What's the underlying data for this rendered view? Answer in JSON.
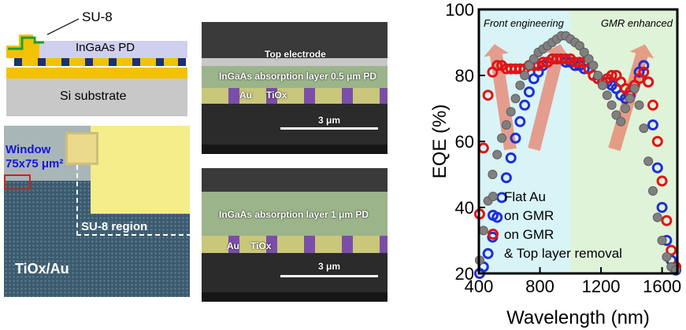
{
  "schematic": {
    "su8_label": "SU-8",
    "ingaas_label": "InGaAs PD",
    "substrate_label": "Si substrate"
  },
  "micrograph": {
    "window_label": "Window",
    "window_size": "75x75 μm²",
    "su8_region_label": "SU-8 region",
    "tiox_au_label": "TiOx/Au"
  },
  "sem_top": {
    "electrode_label": "Top electrode",
    "layer_label": "InGaAs absorption layer 0.5 μm PD",
    "au_label": "Au",
    "tiox_label": "TiOx",
    "scale_label": "3 μm"
  },
  "sem_bottom": {
    "layer_label": "InGaAs absorption layer 1 μm PD",
    "au_label": "Au",
    "tiox_label": "TiOx",
    "scale_label": "3 μm"
  },
  "chart_data": {
    "type": "scatter",
    "xlabel": "Wavelength (nm)",
    "ylabel": "EQE (%)",
    "xlim": [
      400,
      1700
    ],
    "ylim": [
      20,
      100
    ],
    "xticks": [
      400,
      800,
      1200,
      1600
    ],
    "yticks": [
      20,
      40,
      60,
      80,
      100
    ],
    "annotations": [
      "Front engineering",
      "GMR enhanced"
    ],
    "colors": {
      "flat": "#808080",
      "gmr": "#1f2fd6",
      "gmr_removal": "#e01515",
      "region_left": "#d8f4f7",
      "region_right": "#dff3d8",
      "arrow": "#e8806a"
    },
    "series": [
      {
        "name": "Flat Au",
        "x": [
          405,
          430,
          460,
          490,
          520,
          550,
          580,
          610,
          640,
          670,
          700,
          730,
          760,
          790,
          820,
          850,
          880,
          910,
          940,
          970,
          1000,
          1030,
          1060,
          1090,
          1120,
          1150,
          1180,
          1210,
          1240,
          1270,
          1300,
          1330,
          1360,
          1390,
          1420,
          1450,
          1480,
          1510,
          1540,
          1570,
          1600,
          1630,
          1660,
          1690
        ],
        "y": [
          24,
          33,
          42,
          50,
          56,
          61,
          65,
          69,
          73,
          77,
          80,
          83,
          85,
          87,
          88,
          89,
          90,
          91,
          92,
          92,
          91,
          90,
          89,
          87,
          85,
          83,
          80,
          77,
          74,
          71,
          68,
          66,
          70,
          73,
          76,
          71,
          64,
          54,
          45,
          37,
          30,
          25,
          22,
          21
        ]
      },
      {
        "name": "on GMR",
        "x": [
          405,
          430,
          460,
          490,
          520,
          550,
          580,
          610,
          640,
          670,
          700,
          730,
          760,
          790,
          820,
          850,
          880,
          910,
          940,
          970,
          1000,
          1030,
          1060,
          1090,
          1120,
          1150,
          1180,
          1210,
          1240,
          1270,
          1300,
          1330,
          1360,
          1390,
          1420,
          1450,
          1480,
          1510,
          1540,
          1570,
          1600,
          1630,
          1660,
          1690
        ],
        "y": [
          20,
          22,
          26,
          31,
          37,
          43,
          49,
          55,
          61,
          66,
          71,
          75,
          79,
          81,
          83,
          84,
          85,
          85,
          85,
          84,
          84,
          83,
          83,
          82,
          82,
          80,
          79,
          78,
          78,
          77,
          76,
          74,
          73,
          74,
          77,
          81,
          83,
          78,
          65,
          52,
          40,
          30,
          24,
          21
        ]
      },
      {
        "name": "on GMR & Top layer removal",
        "x": [
          405,
          430,
          460,
          490,
          520,
          550,
          580,
          610,
          640,
          670,
          700,
          730,
          760,
          790,
          820,
          850,
          880,
          910,
          940,
          970,
          1000,
          1030,
          1060,
          1090,
          1120,
          1150,
          1180,
          1210,
          1240,
          1270,
          1300,
          1330,
          1360,
          1390,
          1420,
          1450,
          1480,
          1510,
          1540,
          1570,
          1600,
          1630,
          1660,
          1690
        ],
        "y": [
          38,
          58,
          74,
          81,
          83,
          83,
          82,
          82,
          82,
          82,
          82,
          83,
          83,
          83,
          84,
          84,
          85,
          85,
          85,
          85,
          85,
          84,
          84,
          84,
          82,
          80,
          79,
          78,
          79,
          80,
          80,
          78,
          76,
          75,
          77,
          79,
          81,
          78,
          71,
          60,
          48,
          36,
          27,
          22
        ]
      }
    ]
  }
}
